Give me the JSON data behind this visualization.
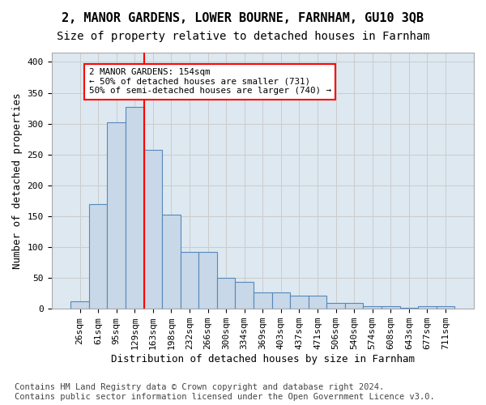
{
  "title": "2, MANOR GARDENS, LOWER BOURNE, FARNHAM, GU10 3QB",
  "subtitle": "Size of property relative to detached houses in Farnham",
  "xlabel": "Distribution of detached houses by size in Farnham",
  "ylabel": "Number of detached properties",
  "bar_values": [
    12,
    170,
    302,
    327,
    258,
    153,
    92,
    92,
    50,
    43,
    27,
    26,
    21,
    21,
    9,
    9,
    4,
    4,
    1,
    4,
    4
  ],
  "bar_labels": [
    "26sqm",
    "61sqm",
    "95sqm",
    "129sqm",
    "163sqm",
    "198sqm",
    "232sqm",
    "266sqm",
    "300sqm",
    "334sqm",
    "369sqm",
    "403sqm",
    "437sqm",
    "471sqm",
    "506sqm",
    "540sqm",
    "574sqm",
    "608sqm",
    "643sqm",
    "677sqm",
    "711sqm"
  ],
  "bar_color": "#c8d8e8",
  "bar_edge_color": "#5588bb",
  "grid_color": "#cccccc",
  "background_color": "#dde8f0",
  "annotation_text": "2 MANOR GARDENS: 154sqm\n← 50% of detached houses are smaller (731)\n50% of semi-detached houses are larger (740) →",
  "annotation_box_color": "white",
  "annotation_box_edge_color": "red",
  "vline_x_index": 3,
  "vline_color": "red",
  "ylim": [
    0,
    415
  ],
  "yticks": [
    0,
    50,
    100,
    150,
    200,
    250,
    300,
    350,
    400
  ],
  "footer_text": "Contains HM Land Registry data © Crown copyright and database right 2024.\nContains public sector information licensed under the Open Government Licence v3.0.",
  "title_fontsize": 11,
  "subtitle_fontsize": 10,
  "xlabel_fontsize": 9,
  "ylabel_fontsize": 9,
  "tick_fontsize": 8,
  "footer_fontsize": 7.5
}
